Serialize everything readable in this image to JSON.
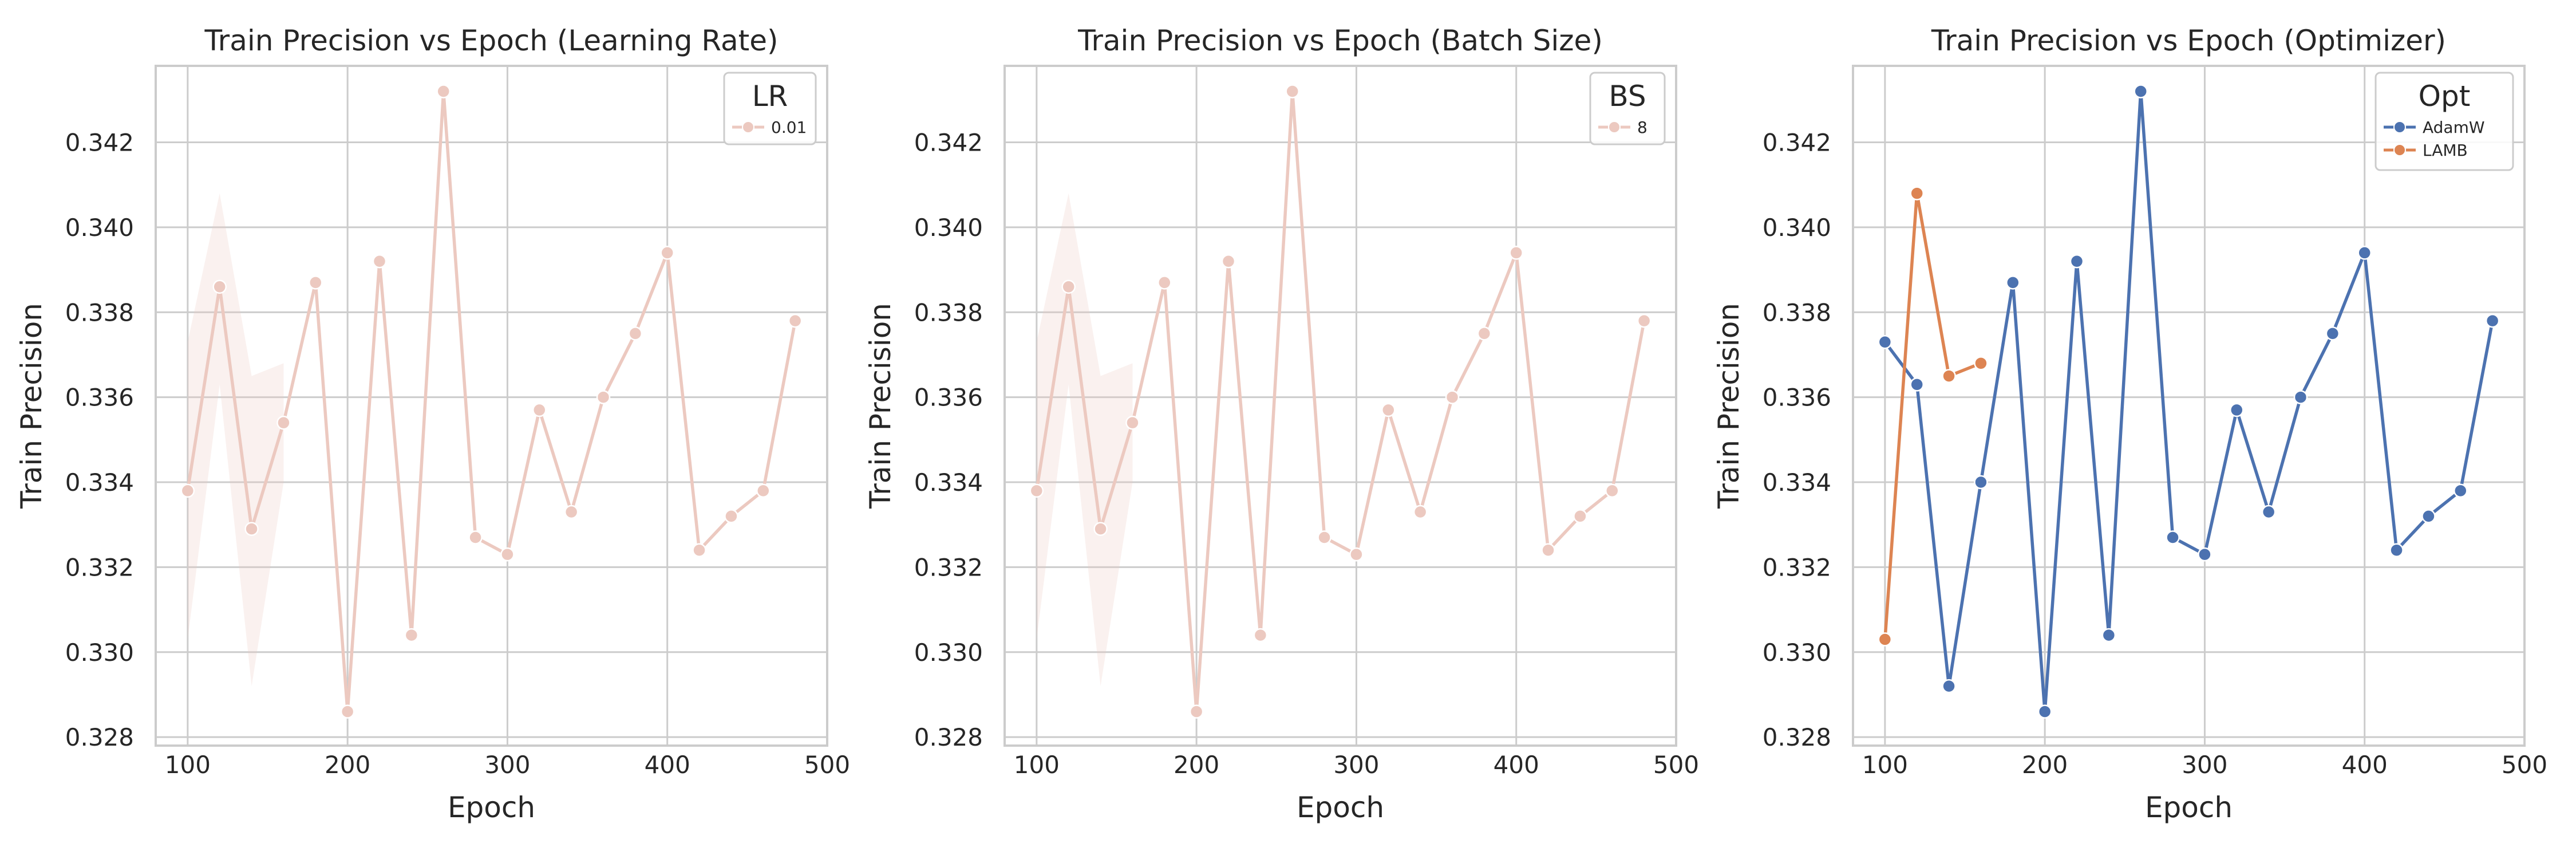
{
  "chart_data": [
    {
      "type": "line",
      "title": "Train Precision vs Epoch (Learning Rate)",
      "xlabel": "Epoch",
      "ylabel": "Train Precision",
      "xlim": [
        80,
        500
      ],
      "ylim": [
        0.3278,
        0.3438
      ],
      "xticks": [
        "100",
        "200",
        "300",
        "400",
        "500"
      ],
      "yticks": [
        "0.328",
        "0.330",
        "0.332",
        "0.334",
        "0.336",
        "0.338",
        "0.340",
        "0.342"
      ],
      "grid": true,
      "legend": {
        "title": "LR",
        "position": "top-right"
      },
      "series": [
        {
          "name": "0.01",
          "color": "#ecc9c0",
          "x": [
            100,
            120,
            140,
            160,
            180,
            200,
            220,
            240,
            260,
            280,
            300,
            320,
            340,
            360,
            380,
            400,
            420,
            440,
            460,
            480
          ],
          "values": [
            0.3338,
            0.3386,
            0.3329,
            0.3354,
            0.3387,
            0.3286,
            0.3392,
            0.3304,
            0.3432,
            0.3327,
            0.3323,
            0.3357,
            0.3333,
            0.336,
            0.3375,
            0.3394,
            0.3324,
            0.3332,
            0.3338,
            0.3378
          ],
          "ci": {
            "x": [
              100,
              120,
              140,
              160
            ],
            "lower": [
              0.3303,
              0.3363,
              0.3292,
              0.334
            ],
            "upper": [
              0.3373,
              0.3408,
              0.3365,
              0.3368
            ]
          }
        }
      ]
    },
    {
      "type": "line",
      "title": "Train Precision vs Epoch (Batch Size)",
      "xlabel": "Epoch",
      "ylabel": "Train Precision",
      "xlim": [
        80,
        500
      ],
      "ylim": [
        0.3278,
        0.3438
      ],
      "xticks": [
        "100",
        "200",
        "300",
        "400",
        "500"
      ],
      "yticks": [
        "0.328",
        "0.330",
        "0.332",
        "0.334",
        "0.336",
        "0.338",
        "0.340",
        "0.342"
      ],
      "grid": true,
      "legend": {
        "title": "BS",
        "position": "top-right"
      },
      "series": [
        {
          "name": "8",
          "color": "#ecc9c0",
          "x": [
            100,
            120,
            140,
            160,
            180,
            200,
            220,
            240,
            260,
            280,
            300,
            320,
            340,
            360,
            380,
            400,
            420,
            440,
            460,
            480
          ],
          "values": [
            0.3338,
            0.3386,
            0.3329,
            0.3354,
            0.3387,
            0.3286,
            0.3392,
            0.3304,
            0.3432,
            0.3327,
            0.3323,
            0.3357,
            0.3333,
            0.336,
            0.3375,
            0.3394,
            0.3324,
            0.3332,
            0.3338,
            0.3378
          ],
          "ci": {
            "x": [
              100,
              120,
              140,
              160
            ],
            "lower": [
              0.3303,
              0.3363,
              0.3292,
              0.334
            ],
            "upper": [
              0.3373,
              0.3408,
              0.3365,
              0.3368
            ]
          }
        }
      ]
    },
    {
      "type": "line",
      "title": "Train Precision vs Epoch (Optimizer)",
      "xlabel": "Epoch",
      "ylabel": "Train Precision",
      "xlim": [
        80,
        500
      ],
      "ylim": [
        0.3278,
        0.3438
      ],
      "xticks": [
        "100",
        "200",
        "300",
        "400",
        "500"
      ],
      "yticks": [
        "0.328",
        "0.330",
        "0.332",
        "0.334",
        "0.336",
        "0.338",
        "0.340",
        "0.342"
      ],
      "grid": true,
      "legend": {
        "title": "Opt",
        "position": "top-right"
      },
      "series": [
        {
          "name": "AdamW",
          "color": "#4c72b0",
          "x": [
            100,
            120,
            140,
            160,
            180,
            200,
            220,
            240,
            260,
            280,
            300,
            320,
            340,
            360,
            380,
            400,
            420,
            440,
            460,
            480
          ],
          "values": [
            0.3373,
            0.3363,
            0.3292,
            0.334,
            0.3387,
            0.3286,
            0.3392,
            0.3304,
            0.3432,
            0.3327,
            0.3323,
            0.3357,
            0.3333,
            0.336,
            0.3375,
            0.3394,
            0.3324,
            0.3332,
            0.3338,
            0.3378
          ]
        },
        {
          "name": "LAMB",
          "color": "#dd8452",
          "x": [
            100,
            120,
            140,
            160
          ],
          "values": [
            0.3303,
            0.3408,
            0.3365,
            0.3368
          ]
        }
      ]
    }
  ]
}
